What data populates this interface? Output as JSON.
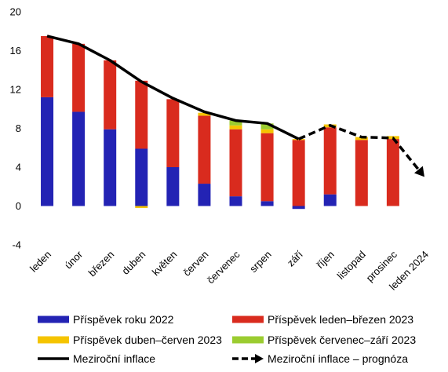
{
  "chart_data": {
    "type": "bar",
    "stacked": true,
    "categories": [
      "leden",
      "únor",
      "březen",
      "duben",
      "květen",
      "červen",
      "červenec",
      "srpen",
      "září",
      "říjen",
      "listopad",
      "prosinec",
      "leden 2024"
    ],
    "yticks": [
      "20",
      "16",
      "12",
      "8",
      "4",
      "0",
      "-4"
    ],
    "ylim": [
      -4,
      20
    ],
    "grid": false,
    "legend_position": "bottom",
    "series": [
      {
        "name": "Příspěvek roku 2022",
        "color": "#2323b4",
        "values": [
          11.2,
          9.7,
          7.9,
          5.9,
          4.0,
          2.3,
          1.0,
          0.5,
          -0.3,
          1.2,
          0,
          0,
          0
        ]
      },
      {
        "name": "Příspěvek leden–březen 2023",
        "color": "#d92b1e",
        "values": [
          6.3,
          7.0,
          7.1,
          7.0,
          7.0,
          7.0,
          6.9,
          7.0,
          6.8,
          6.9,
          6.8,
          6.9,
          0
        ]
      },
      {
        "name": "Příspěvek duben–červen 2023",
        "color": "#f5c400",
        "values": [
          0,
          0,
          0,
          -0.2,
          0,
          0.3,
          0.4,
          0.4,
          0.1,
          0.3,
          0.3,
          0.3,
          0
        ]
      },
      {
        "name": "Příspěvek červenec–září 2023",
        "color": "#9bcc30",
        "values": [
          0,
          0,
          0,
          0,
          0,
          0,
          0.5,
          0.6,
          0,
          0,
          0,
          0,
          0
        ]
      }
    ],
    "lines": [
      {
        "name": "Meziroční inflace",
        "color": "#000000",
        "style": "solid",
        "x_index": [
          0,
          1,
          2,
          3,
          4,
          5,
          6,
          7,
          8
        ],
        "values": [
          17.5,
          16.7,
          15.0,
          12.8,
          11.1,
          9.7,
          8.8,
          8.5,
          6.9
        ]
      },
      {
        "name": "Meziroční inflace – prognóza",
        "color": "#000000",
        "style": "dashed",
        "x_index": [
          8,
          9,
          10,
          11,
          12
        ],
        "values": [
          6.9,
          8.3,
          7.1,
          7.0,
          3.0
        ]
      }
    ]
  }
}
